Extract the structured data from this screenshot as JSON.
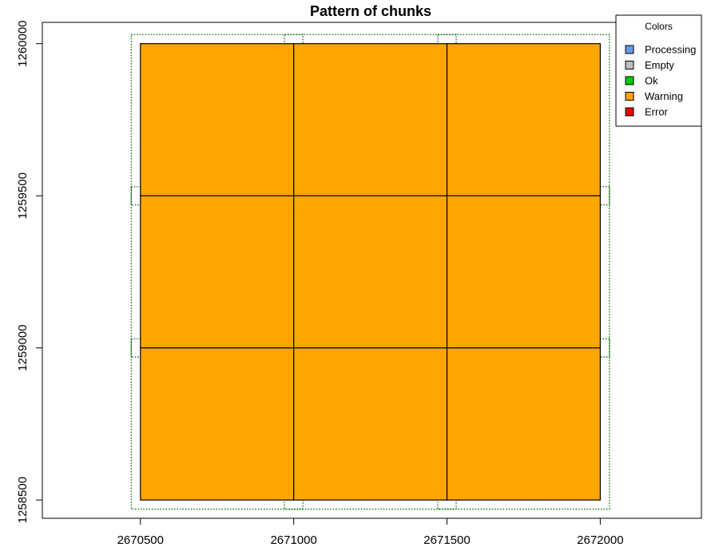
{
  "chart_data": {
    "type": "heatmap",
    "title": "Pattern of chunks",
    "xlabel": "",
    "ylabel": "",
    "xlim": [
      2670180,
      2672330
    ],
    "ylim": [
      1258440,
      1260070
    ],
    "x_ticks": [
      2670500,
      2671000,
      2671500,
      2672000
    ],
    "y_ticks": [
      1258500,
      1259000,
      1259500,
      1260000
    ],
    "x_tick_labels": [
      "2670500",
      "2671000",
      "2671500",
      "2672000"
    ],
    "y_tick_labels": [
      "1258500",
      "1259000",
      "1259500",
      "1260000"
    ],
    "chunk_boundaries_x": [
      2670500,
      2671000,
      2671500,
      2672000
    ],
    "chunk_boundaries_y": [
      1258500,
      1259000,
      1259500,
      1260000
    ],
    "buffer": 30,
    "chunks": [
      {
        "xmin": 2670500,
        "xmax": 2671000,
        "ymin": 1259500,
        "ymax": 1260000,
        "status": "Warning"
      },
      {
        "xmin": 2671000,
        "xmax": 2671500,
        "ymin": 1259500,
        "ymax": 1260000,
        "status": "Warning"
      },
      {
        "xmin": 2671500,
        "xmax": 2672000,
        "ymin": 1259500,
        "ymax": 1260000,
        "status": "Warning"
      },
      {
        "xmin": 2670500,
        "xmax": 2671000,
        "ymin": 1259000,
        "ymax": 1259500,
        "status": "Warning"
      },
      {
        "xmin": 2671000,
        "xmax": 2671500,
        "ymin": 1259000,
        "ymax": 1259500,
        "status": "Warning"
      },
      {
        "xmin": 2671500,
        "xmax": 2672000,
        "ymin": 1259000,
        "ymax": 1259500,
        "status": "Warning"
      },
      {
        "xmin": 2670500,
        "xmax": 2671000,
        "ymin": 1258500,
        "ymax": 1259000,
        "status": "Warning"
      },
      {
        "xmin": 2671000,
        "xmax": 2671500,
        "ymin": 1258500,
        "ymax": 1259000,
        "status": "Warning"
      },
      {
        "xmin": 2671500,
        "xmax": 2672000,
        "ymin": 1258500,
        "ymax": 1259000,
        "status": "Warning"
      }
    ],
    "legend": {
      "title": "Colors",
      "position": "top-right",
      "items": [
        {
          "label": "Processing",
          "color": "#6699ee"
        },
        {
          "label": "Empty",
          "color": "#bebebe"
        },
        {
          "label": "Ok",
          "color": "#00cc00"
        },
        {
          "label": "Warning",
          "color": "#ffa500"
        },
        {
          "label": "Error",
          "color": "#ee0000"
        }
      ]
    },
    "colors": {
      "chunk_border": "#000000",
      "buffer_line": "#006400",
      "axis": "#000000"
    },
    "grid": false
  }
}
